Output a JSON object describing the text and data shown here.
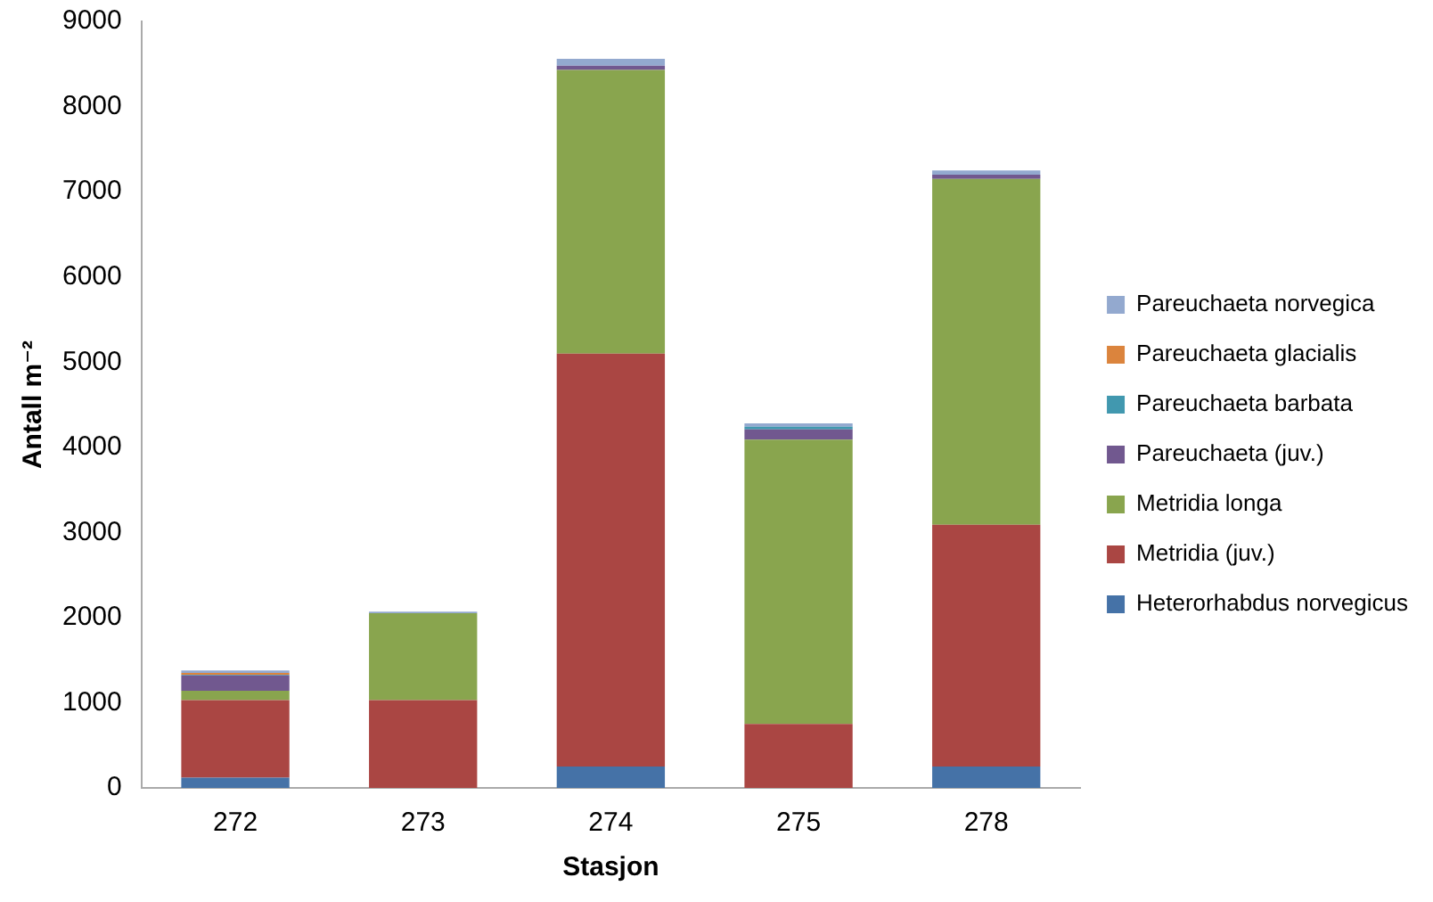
{
  "chart_data": {
    "type": "bar",
    "stacked": true,
    "xlabel": "Stasjon",
    "ylabel": "Antall m⁻²",
    "categories": [
      "272",
      "273",
      "274",
      "275",
      "278"
    ],
    "series": [
      {
        "name": "Heterorhabdus norvegicus",
        "color": "#4572a7",
        "values": [
          120,
          0,
          250,
          0,
          250
        ]
      },
      {
        "name": "Metridia (juv.)",
        "color": "#aa4643",
        "values": [
          910,
          1030,
          4850,
          750,
          2840
        ]
      },
      {
        "name": "Metridia longa",
        "color": "#89a54e",
        "values": [
          110,
          1020,
          3330,
          3340,
          4060
        ]
      },
      {
        "name": "Pareuchaeta (juv.)",
        "color": "#71588f",
        "values": [
          180,
          0,
          50,
          120,
          50
        ]
      },
      {
        "name": "Pareuchaeta barbata",
        "color": "#4198af",
        "values": [
          10,
          0,
          0,
          30,
          0
        ]
      },
      {
        "name": "Pareuchaeta glacialis",
        "color": "#db843d",
        "values": [
          20,
          0,
          0,
          0,
          0
        ]
      },
      {
        "name": "Pareuchaeta norvegica",
        "color": "#93a9cf",
        "values": [
          30,
          20,
          80,
          40,
          50
        ]
      }
    ],
    "ylim": [
      0,
      9000
    ],
    "yticks": [
      0,
      1000,
      2000,
      3000,
      4000,
      5000,
      6000,
      7000,
      8000,
      9000
    ],
    "grid": false,
    "legend": "right"
  }
}
